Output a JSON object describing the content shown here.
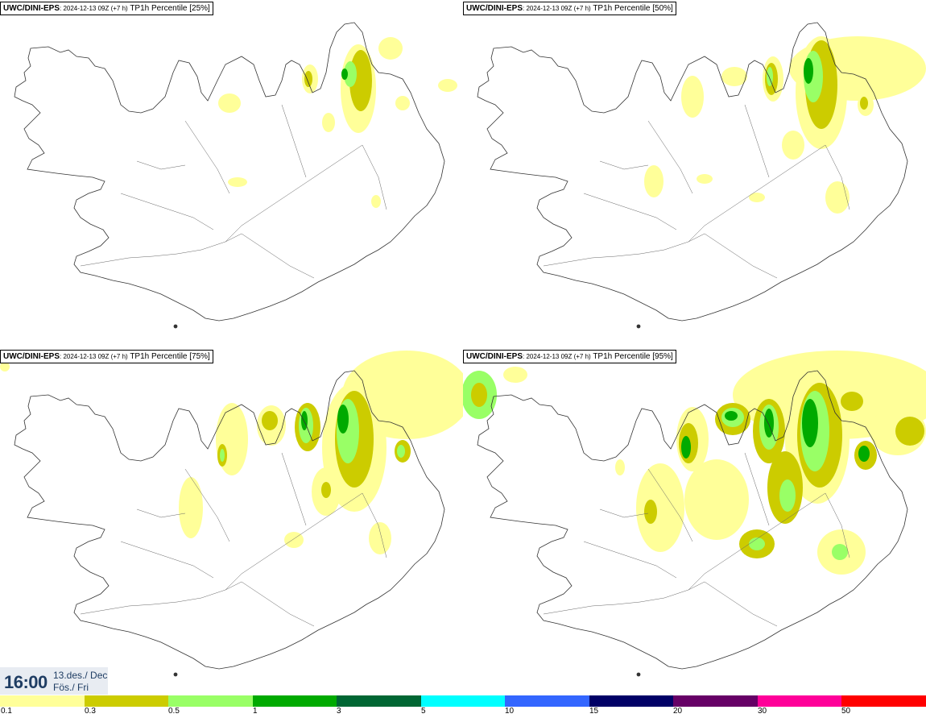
{
  "panels": [
    {
      "model": "UWC/DINI-EPS",
      "run": ": 2024-12-13 09Z (+7 h)",
      "field": "TP1h Percentile [25%]"
    },
    {
      "model": "UWC/DINI-EPS",
      "run": ": 2024-12-13 09Z (+7 h)",
      "field": "TP1h Percentile [50%]"
    },
    {
      "model": "UWC/DINI-EPS",
      "run": ": 2024-12-13 09Z (+7 h)",
      "field": "TP1h Percentile [75%]"
    },
    {
      "model": "UWC/DINI-EPS",
      "run": ": 2024-12-13 09Z (+7 h)",
      "field": "TP1h Percentile [95%]"
    }
  ],
  "valid_time": {
    "time": "16:00",
    "date": "13.des./ Dec",
    "weekday": "Fös./ Fri"
  },
  "colorbar": {
    "colors": [
      "#ffff99",
      "#cccc00",
      "#99ff66",
      "#00aa00",
      "#006633",
      "#00ffff",
      "#3366ff",
      "#000066",
      "#660066",
      "#ff0099",
      "#ff0000"
    ],
    "labels": [
      "0.1",
      "0.3",
      "0.5",
      "1",
      "3",
      "5",
      "10",
      "15",
      "20",
      "30",
      "50"
    ]
  }
}
